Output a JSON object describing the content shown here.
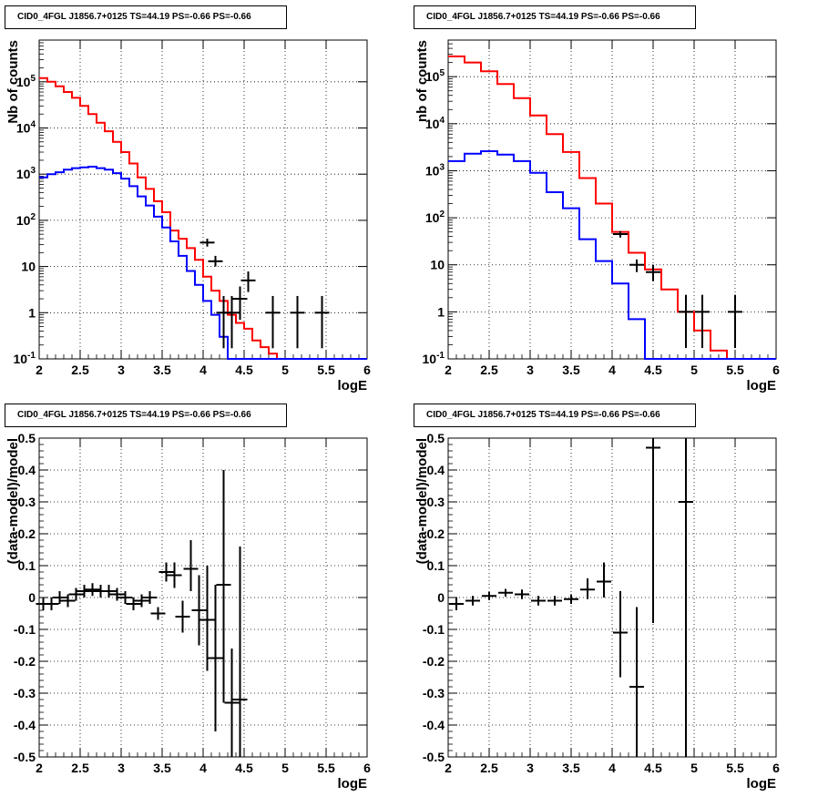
{
  "colors": {
    "total": "#ff0000",
    "component": "#0000ff",
    "data": "#000000"
  },
  "chart_data": [
    {
      "id": "p1",
      "type": "line",
      "title": "CID0_4FGL J1856.7+0125 TS=44.19 PS=-0.66 PS=-0.66",
      "xlabel": "logE",
      "ylabel": "Nb of counts",
      "xlim": [
        2,
        6
      ],
      "ylim": [
        0.1,
        800000
      ],
      "ylog": true,
      "grid": true,
      "x_ticks": [
        "2",
        "2.5",
        "3",
        "3.5",
        "4",
        "4.5",
        "5",
        "5.5",
        "6"
      ],
      "y_ticks": [
        "10^-1",
        "1",
        "10",
        "10^2",
        "10^3",
        "10^4",
        "10^5"
      ],
      "bin_edges": [
        2.0,
        2.1,
        2.2,
        2.3,
        2.4,
        2.5,
        2.6,
        2.7,
        2.8,
        2.9,
        3.0,
        3.1,
        3.2,
        3.3,
        3.4,
        3.5,
        3.6,
        3.7,
        3.8,
        3.9,
        4.0,
        4.1,
        4.2,
        4.3,
        4.4,
        4.5,
        4.6,
        4.7,
        4.8,
        4.9,
        5.0,
        5.1,
        5.2,
        5.3,
        5.4,
        5.5,
        5.6,
        5.7,
        5.8,
        5.9,
        6.0
      ],
      "series": [
        {
          "style": "step",
          "color": "#ff0000",
          "values": [
            120000,
            100000,
            80000,
            60000,
            45000,
            30000,
            20000,
            13000,
            8500,
            5000,
            3000,
            1700,
            850,
            480,
            260,
            150,
            60,
            40,
            25,
            14,
            6,
            3,
            1.8,
            0.9,
            0.6,
            0.45,
            0.25,
            0.18,
            0.13,
            0.1,
            0.1,
            0.1,
            0.1,
            0.1,
            0.1,
            0.1,
            0.1,
            0.1,
            0.1,
            0.1
          ]
        },
        {
          "style": "step",
          "color": "#0000ff",
          "values": [
            850,
            1000,
            1100,
            1250,
            1350,
            1400,
            1450,
            1350,
            1250,
            1050,
            800,
            550,
            330,
            210,
            120,
            70,
            35,
            17,
            8,
            4,
            1.8,
            0.9,
            0.3,
            0.1,
            0.05,
            0.05,
            0.05,
            0.05,
            0.05,
            0.05,
            0.05,
            0.05,
            0.05,
            0.05,
            0.05,
            0.05,
            0.05,
            0.05,
            0.05,
            0.05
          ]
        },
        {
          "style": "errorbar",
          "color": "#000000",
          "x": [
            4.05,
            4.15,
            4.25,
            4.35,
            4.45,
            4.55,
            4.85,
            5.15,
            5.45
          ],
          "y": [
            33,
            13,
            1,
            1,
            2,
            5,
            1,
            1,
            1
          ],
          "y_lo": [
            27,
            10,
            0.17,
            0.17,
            0.7,
            2.8,
            0.17,
            0.17,
            0.17
          ],
          "y_hi": [
            40,
            17,
            2.3,
            2.3,
            3.7,
            7.8,
            2.3,
            2.3,
            2.3
          ]
        }
      ]
    },
    {
      "id": "p2",
      "type": "line",
      "title": "CID0_4FGL J1856.7+0125 TS=44.19 PS=-0.66 PS=-0.66",
      "xlabel": "logE",
      "ylabel": "nb of counts",
      "xlim": [
        2,
        6
      ],
      "ylim": [
        0.1,
        600000
      ],
      "ylog": true,
      "grid": true,
      "x_ticks": [
        "2",
        "2.5",
        "3",
        "3.5",
        "4",
        "4.5",
        "5",
        "5.5",
        "6"
      ],
      "y_ticks": [
        "10^-1",
        "1",
        "10",
        "10^2",
        "10^3",
        "10^4",
        "10^5"
      ],
      "bin_edges": [
        2.0,
        2.2,
        2.4,
        2.6,
        2.8,
        3.0,
        3.2,
        3.4,
        3.6,
        3.8,
        4.0,
        4.2,
        4.4,
        4.6,
        4.8,
        5.0,
        5.2,
        5.4,
        5.6,
        5.8,
        6.0
      ],
      "series": [
        {
          "style": "step",
          "color": "#ff0000",
          "values": [
            270000,
            200000,
            130000,
            70000,
            35000,
            15000,
            6000,
            2500,
            700,
            200,
            50,
            18,
            8,
            3,
            1,
            0.4,
            0.15,
            0.1,
            0.1,
            0.1
          ]
        },
        {
          "style": "step",
          "color": "#0000ff",
          "values": [
            1600,
            2300,
            2600,
            2200,
            1600,
            900,
            350,
            160,
            35,
            12,
            4,
            0.7,
            0.1,
            0.1,
            0.1,
            0.1,
            0.1,
            0.1,
            0.1,
            0.1
          ]
        },
        {
          "style": "errorbar",
          "color": "#000000",
          "x": [
            4.1,
            4.3,
            4.5,
            4.9,
            5.1,
            5.5
          ],
          "y": [
            45,
            10,
            7,
            1,
            1,
            1
          ],
          "y_lo": [
            38,
            7,
            4.5,
            0.17,
            0.17,
            0.17
          ],
          "y_hi": [
            52,
            13,
            10,
            2.3,
            2.3,
            2.3
          ]
        }
      ]
    },
    {
      "id": "p3",
      "type": "scatter",
      "title": "CID0_4FGL J1856.7+0125 TS=44.19 PS=-0.66 PS=-0.66",
      "xlabel": "logE",
      "ylabel": "(data-model)/model",
      "xlim": [
        2,
        6
      ],
      "ylim": [
        -0.5,
        0.5
      ],
      "ylog": false,
      "grid": true,
      "x_ticks": [
        "2",
        "2.5",
        "3",
        "3.5",
        "4",
        "4.5",
        "5",
        "5.5",
        "6"
      ],
      "y_ticks": [
        "-0.5",
        "-0.4",
        "-0.3",
        "-0.2",
        "-0.1",
        "0",
        "0.1",
        "0.2",
        "0.3",
        "0.4",
        "0.5"
      ],
      "series": [
        {
          "style": "errorbar",
          "color": "#000000",
          "x": [
            2.05,
            2.15,
            2.25,
            2.35,
            2.45,
            2.55,
            2.65,
            2.75,
            2.85,
            2.95,
            3.05,
            3.15,
            3.25,
            3.35,
            3.45,
            3.55,
            3.65,
            3.75,
            3.85,
            3.95,
            4.05,
            4.15,
            4.25,
            4.35,
            4.45
          ],
          "y": [
            -0.02,
            -0.02,
            0.0,
            -0.01,
            0.01,
            0.02,
            0.025,
            0.02,
            0.02,
            0.01,
            0.0,
            -0.02,
            -0.01,
            0.0,
            -0.05,
            0.08,
            0.07,
            -0.06,
            0.09,
            -0.04,
            -0.07,
            -0.19,
            0.04,
            -0.33,
            -0.32
          ],
          "y_lo": [
            -0.04,
            -0.04,
            -0.02,
            -0.03,
            -0.01,
            0.0,
            0.005,
            0.0,
            0.0,
            -0.01,
            -0.02,
            -0.04,
            -0.03,
            -0.02,
            -0.07,
            0.05,
            0.03,
            -0.11,
            0.02,
            -0.15,
            -0.23,
            -0.42,
            -0.33,
            -0.5,
            -0.5
          ],
          "y_hi": [
            0.0,
            0.0,
            0.02,
            0.01,
            0.03,
            0.04,
            0.045,
            0.04,
            0.04,
            0.03,
            0.02,
            0.0,
            0.01,
            0.02,
            -0.03,
            0.11,
            0.11,
            -0.01,
            0.18,
            0.07,
            0.1,
            0.04,
            0.4,
            -0.16,
            0.16
          ]
        }
      ]
    },
    {
      "id": "p4",
      "type": "scatter",
      "title": "CID0_4FGL J1856.7+0125 TS=44.19 PS=-0.66 PS=-0.66",
      "xlabel": "logE",
      "ylabel": "(data-model)/model",
      "xlim": [
        2,
        6
      ],
      "ylim": [
        -0.5,
        0.5
      ],
      "ylog": false,
      "grid": true,
      "x_ticks": [
        "2",
        "2.5",
        "3",
        "3.5",
        "4",
        "4.5",
        "5",
        "5.5",
        "6"
      ],
      "y_ticks": [
        "-0.5",
        "-0.4",
        "-0.3",
        "-0.2",
        "-0.1",
        "0",
        "0.1",
        "0.2",
        "0.3",
        "0.4",
        "0.5"
      ],
      "series": [
        {
          "style": "errorbar",
          "color": "#000000",
          "x": [
            2.1,
            2.3,
            2.5,
            2.7,
            2.9,
            3.1,
            3.3,
            3.5,
            3.7,
            3.9,
            4.1,
            4.3,
            4.5,
            4.9
          ],
          "y": [
            -0.02,
            -0.01,
            0.005,
            0.015,
            0.01,
            -0.01,
            -0.01,
            -0.005,
            0.025,
            0.05,
            -0.11,
            -0.28,
            0.47,
            0.3
          ],
          "y_lo": [
            -0.04,
            -0.025,
            -0.008,
            0.003,
            -0.005,
            -0.025,
            -0.025,
            -0.02,
            -0.005,
            0.0,
            -0.25,
            -0.5,
            -0.08,
            -0.5
          ],
          "y_hi": [
            0.0,
            0.005,
            0.018,
            0.027,
            0.025,
            0.005,
            0.005,
            0.01,
            0.06,
            0.11,
            0.02,
            -0.03,
            0.5,
            0.5
          ]
        }
      ]
    }
  ]
}
